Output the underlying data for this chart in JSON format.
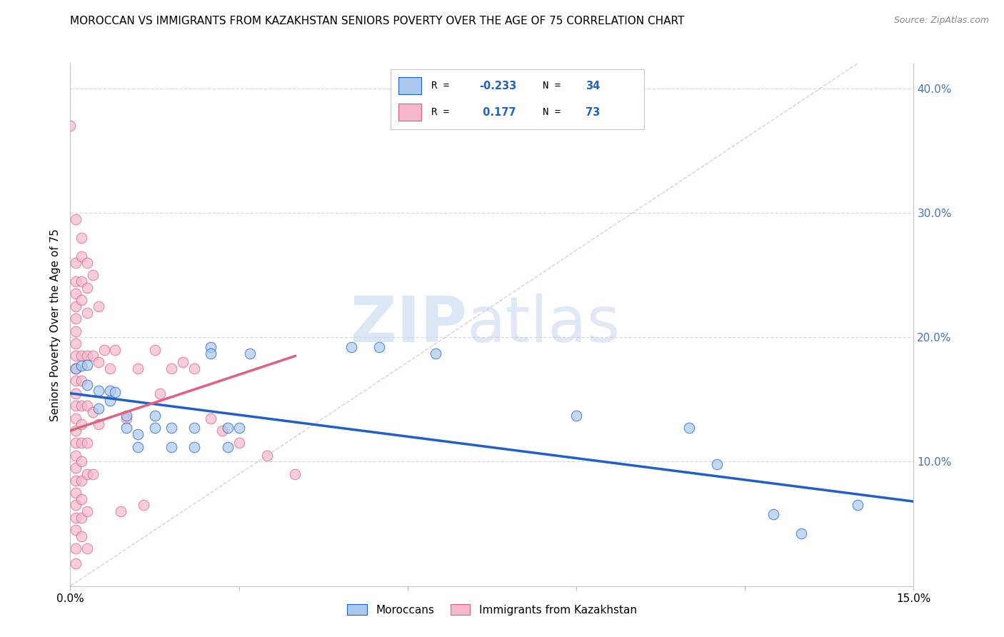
{
  "title": "MOROCCAN VS IMMIGRANTS FROM KAZAKHSTAN SENIORS POVERTY OVER THE AGE OF 75 CORRELATION CHART",
  "source": "Source: ZipAtlas.com",
  "ylabel": "Seniors Poverty Over the Age of 75",
  "xlim": [
    0.0,
    0.15
  ],
  "ylim": [
    0.0,
    0.42
  ],
  "legend_label1": "Moroccans",
  "legend_label2": "Immigrants from Kazakhstan",
  "color_blue": "#aac8ed",
  "color_pink": "#f5b8ca",
  "line_blue": "#2060c8",
  "line_pink": "#e06080",
  "line_diag_color": "#d0d0d0",
  "watermark_zip": "ZIP",
  "watermark_atlas": "atlas",
  "background_color": "#ffffff",
  "grid_color": "#d8d8d8",
  "blue_scatter": [
    [
      0.001,
      0.175
    ],
    [
      0.002,
      0.177
    ],
    [
      0.003,
      0.178
    ],
    [
      0.003,
      0.162
    ],
    [
      0.005,
      0.157
    ],
    [
      0.005,
      0.143
    ],
    [
      0.007,
      0.157
    ],
    [
      0.007,
      0.149
    ],
    [
      0.008,
      0.156
    ],
    [
      0.01,
      0.137
    ],
    [
      0.01,
      0.127
    ],
    [
      0.012,
      0.112
    ],
    [
      0.012,
      0.122
    ],
    [
      0.015,
      0.137
    ],
    [
      0.015,
      0.127
    ],
    [
      0.018,
      0.127
    ],
    [
      0.018,
      0.112
    ],
    [
      0.022,
      0.127
    ],
    [
      0.022,
      0.112
    ],
    [
      0.025,
      0.192
    ],
    [
      0.025,
      0.187
    ],
    [
      0.028,
      0.127
    ],
    [
      0.028,
      0.112
    ],
    [
      0.03,
      0.127
    ],
    [
      0.032,
      0.187
    ],
    [
      0.05,
      0.192
    ],
    [
      0.055,
      0.192
    ],
    [
      0.065,
      0.187
    ],
    [
      0.09,
      0.137
    ],
    [
      0.11,
      0.127
    ],
    [
      0.115,
      0.098
    ],
    [
      0.125,
      0.058
    ],
    [
      0.13,
      0.042
    ],
    [
      0.14,
      0.065
    ]
  ],
  "pink_scatter": [
    [
      0.0,
      0.37
    ],
    [
      0.001,
      0.295
    ],
    [
      0.001,
      0.26
    ],
    [
      0.001,
      0.245
    ],
    [
      0.001,
      0.235
    ],
    [
      0.001,
      0.225
    ],
    [
      0.001,
      0.215
    ],
    [
      0.001,
      0.205
    ],
    [
      0.001,
      0.195
    ],
    [
      0.001,
      0.185
    ],
    [
      0.001,
      0.175
    ],
    [
      0.001,
      0.165
    ],
    [
      0.001,
      0.155
    ],
    [
      0.001,
      0.145
    ],
    [
      0.001,
      0.135
    ],
    [
      0.001,
      0.125
    ],
    [
      0.001,
      0.115
    ],
    [
      0.001,
      0.105
    ],
    [
      0.001,
      0.095
    ],
    [
      0.001,
      0.085
    ],
    [
      0.001,
      0.075
    ],
    [
      0.001,
      0.065
    ],
    [
      0.001,
      0.055
    ],
    [
      0.001,
      0.045
    ],
    [
      0.001,
      0.03
    ],
    [
      0.001,
      0.018
    ],
    [
      0.002,
      0.28
    ],
    [
      0.002,
      0.265
    ],
    [
      0.002,
      0.245
    ],
    [
      0.002,
      0.23
    ],
    [
      0.002,
      0.185
    ],
    [
      0.002,
      0.165
    ],
    [
      0.002,
      0.145
    ],
    [
      0.002,
      0.13
    ],
    [
      0.002,
      0.115
    ],
    [
      0.002,
      0.1
    ],
    [
      0.002,
      0.085
    ],
    [
      0.002,
      0.07
    ],
    [
      0.002,
      0.055
    ],
    [
      0.002,
      0.04
    ],
    [
      0.003,
      0.26
    ],
    [
      0.003,
      0.24
    ],
    [
      0.003,
      0.22
    ],
    [
      0.003,
      0.185
    ],
    [
      0.003,
      0.145
    ],
    [
      0.003,
      0.115
    ],
    [
      0.003,
      0.09
    ],
    [
      0.003,
      0.06
    ],
    [
      0.003,
      0.03
    ],
    [
      0.004,
      0.25
    ],
    [
      0.004,
      0.185
    ],
    [
      0.004,
      0.14
    ],
    [
      0.004,
      0.09
    ],
    [
      0.005,
      0.225
    ],
    [
      0.005,
      0.18
    ],
    [
      0.005,
      0.13
    ],
    [
      0.006,
      0.19
    ],
    [
      0.007,
      0.175
    ],
    [
      0.008,
      0.19
    ],
    [
      0.009,
      0.06
    ],
    [
      0.01,
      0.135
    ],
    [
      0.012,
      0.175
    ],
    [
      0.013,
      0.065
    ],
    [
      0.015,
      0.19
    ],
    [
      0.016,
      0.155
    ],
    [
      0.018,
      0.175
    ],
    [
      0.02,
      0.18
    ],
    [
      0.022,
      0.175
    ],
    [
      0.025,
      0.135
    ],
    [
      0.027,
      0.125
    ],
    [
      0.03,
      0.115
    ],
    [
      0.035,
      0.105
    ],
    [
      0.04,
      0.09
    ]
  ],
  "blue_trendline": [
    [
      0.0,
      0.155
    ],
    [
      0.15,
      0.068
    ]
  ],
  "pink_trendline": [
    [
      0.0,
      0.125
    ],
    [
      0.04,
      0.185
    ]
  ],
  "diag_line": [
    [
      0.0,
      0.0
    ],
    [
      0.14,
      0.42
    ]
  ]
}
